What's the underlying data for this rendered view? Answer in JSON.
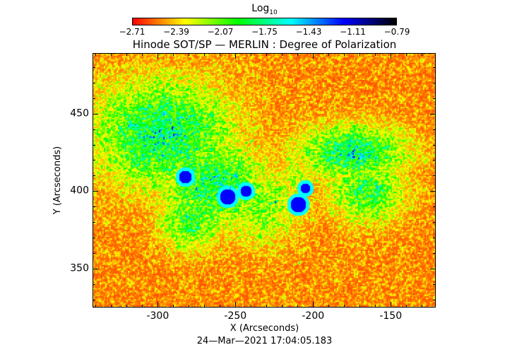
{
  "chart_data": {
    "type": "heatmap",
    "title": "Hinode SOT/SP — MERLIN : Degree of Polarization",
    "xlabel": "X (Arcseconds)",
    "ylabel": "Y (Arcseconds)",
    "xlim": [
      -342,
      -121
    ],
    "ylim": [
      325,
      489
    ],
    "xticks": [
      "-300",
      "-250",
      "-200",
      "-150"
    ],
    "xtick_values": [
      -300,
      -250,
      -200,
      -150
    ],
    "yticks": [
      "350",
      "400",
      "450"
    ],
    "ytick_values": [
      350,
      400,
      450
    ],
    "colorbar": {
      "label": "Log",
      "label_sub": "10",
      "range": [
        -2.71,
        -0.79
      ],
      "ticks": [
        "−2.71",
        "−2.39",
        "−2.07",
        "−1.75",
        "−1.43",
        "−1.11",
        "−0.79"
      ],
      "colors": [
        "#ff0000",
        "#ffff00",
        "#00ff00",
        "#00ffff",
        "#0000ff",
        "#000000"
      ]
    },
    "timestamp": "24—Mar—2021 17:04:05.183"
  }
}
